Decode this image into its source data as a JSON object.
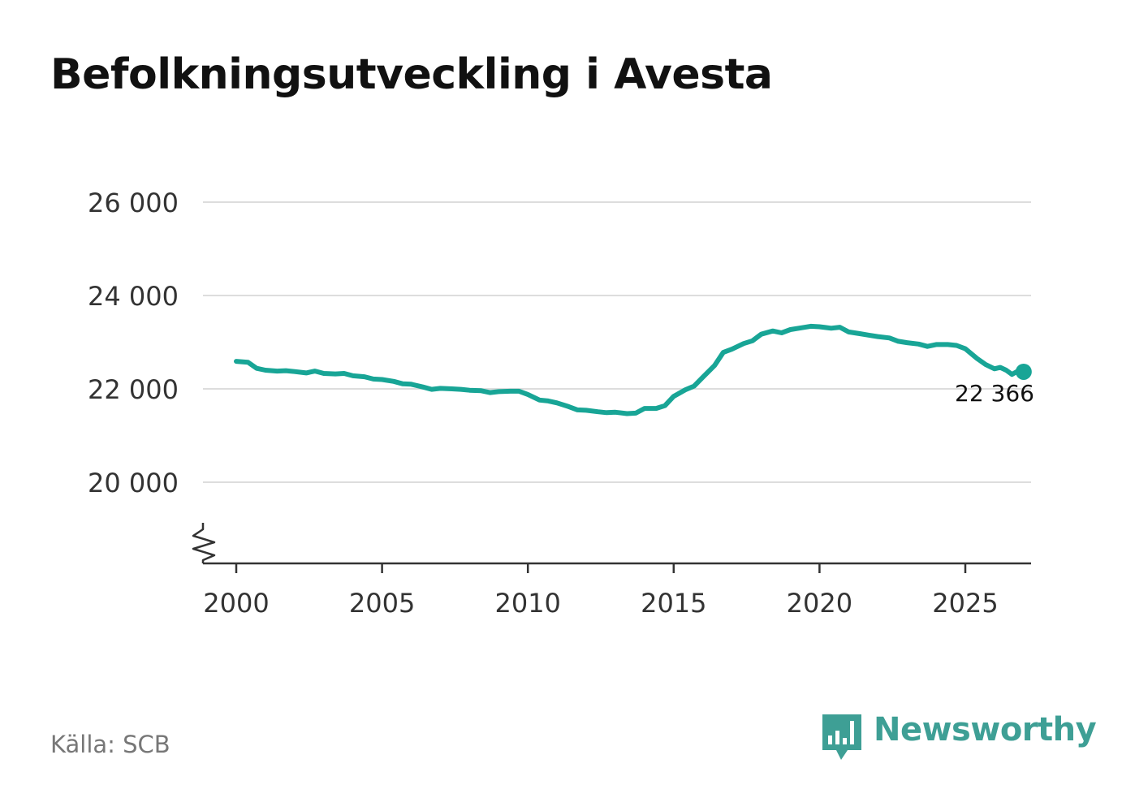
{
  "title": "Befolkningsutveckling i Avesta",
  "source": "Källa: SCB",
  "brand": {
    "name": "Newsworthy",
    "icon": "bar-chart-speech-bubble-icon",
    "color": "#3e9f95"
  },
  "colors": {
    "line": "#18a596",
    "grid": "#dddddd",
    "axis": "#333333"
  },
  "chart_data": {
    "type": "line",
    "title": "Befolkningsutveckling i Avesta",
    "xlabel": "",
    "ylabel": "",
    "xlim": [
      1999.2,
      2027.2
    ],
    "ylim": [
      18200,
      26000
    ],
    "axis_break": true,
    "grid": true,
    "y_ticks": [
      {
        "value": 20000,
        "label": "20 000"
      },
      {
        "value": 22000,
        "label": "22 000"
      },
      {
        "value": 24000,
        "label": "24 000"
      },
      {
        "value": 26000,
        "label": "26 000"
      }
    ],
    "x_ticks": [
      {
        "value": 2000,
        "label": "2000"
      },
      {
        "value": 2005,
        "label": "2005"
      },
      {
        "value": 2010,
        "label": "2010"
      },
      {
        "value": 2015,
        "label": "2015"
      },
      {
        "value": 2020,
        "label": "2020"
      },
      {
        "value": 2025,
        "label": "2025"
      }
    ],
    "end_label": "22 366",
    "series": [
      {
        "values": [
          [
            2000.0,
            22590
          ],
          [
            2000.4,
            22570
          ],
          [
            2000.7,
            22440
          ],
          [
            2001.0,
            22400
          ],
          [
            2001.4,
            22380
          ],
          [
            2001.7,
            22390
          ],
          [
            2002.0,
            22370
          ],
          [
            2002.4,
            22340
          ],
          [
            2002.7,
            22380
          ],
          [
            2003.0,
            22330
          ],
          [
            2003.4,
            22320
          ],
          [
            2003.7,
            22330
          ],
          [
            2004.0,
            22280
          ],
          [
            2004.4,
            22260
          ],
          [
            2004.7,
            22210
          ],
          [
            2005.0,
            22200
          ],
          [
            2005.4,
            22160
          ],
          [
            2005.7,
            22110
          ],
          [
            2006.0,
            22100
          ],
          [
            2006.4,
            22040
          ],
          [
            2006.7,
            21990
          ],
          [
            2007.0,
            22010
          ],
          [
            2007.4,
            22000
          ],
          [
            2007.7,
            21990
          ],
          [
            2008.0,
            21970
          ],
          [
            2008.4,
            21960
          ],
          [
            2008.7,
            21920
          ],
          [
            2009.0,
            21940
          ],
          [
            2009.4,
            21950
          ],
          [
            2009.7,
            21950
          ],
          [
            2010.0,
            21880
          ],
          [
            2010.4,
            21760
          ],
          [
            2010.7,
            21740
          ],
          [
            2011.0,
            21700
          ],
          [
            2011.4,
            21620
          ],
          [
            2011.7,
            21550
          ],
          [
            2012.0,
            21540
          ],
          [
            2012.4,
            21510
          ],
          [
            2012.7,
            21490
          ],
          [
            2013.0,
            21500
          ],
          [
            2013.4,
            21470
          ],
          [
            2013.7,
            21480
          ],
          [
            2014.0,
            21580
          ],
          [
            2014.4,
            21580
          ],
          [
            2014.7,
            21640
          ],
          [
            2015.0,
            21840
          ],
          [
            2015.4,
            21980
          ],
          [
            2015.7,
            22060
          ],
          [
            2016.0,
            22250
          ],
          [
            2016.4,
            22500
          ],
          [
            2016.7,
            22780
          ],
          [
            2017.0,
            22850
          ],
          [
            2017.4,
            22970
          ],
          [
            2017.7,
            23030
          ],
          [
            2018.0,
            23170
          ],
          [
            2018.4,
            23240
          ],
          [
            2018.7,
            23200
          ],
          [
            2019.0,
            23270
          ],
          [
            2019.4,
            23310
          ],
          [
            2019.7,
            23340
          ],
          [
            2020.0,
            23330
          ],
          [
            2020.4,
            23300
          ],
          [
            2020.7,
            23320
          ],
          [
            2021.0,
            23220
          ],
          [
            2021.4,
            23180
          ],
          [
            2021.7,
            23150
          ],
          [
            2022.0,
            23120
          ],
          [
            2022.4,
            23090
          ],
          [
            2022.7,
            23020
          ],
          [
            2023.0,
            22990
          ],
          [
            2023.4,
            22960
          ],
          [
            2023.7,
            22910
          ],
          [
            2024.0,
            22950
          ],
          [
            2024.4,
            22950
          ],
          [
            2024.7,
            22930
          ],
          [
            2025.0,
            22860
          ],
          [
            2025.4,
            22650
          ],
          [
            2025.7,
            22520
          ],
          [
            2026.0,
            22430
          ],
          [
            2026.2,
            22460
          ],
          [
            2026.4,
            22400
          ],
          [
            2026.6,
            22310
          ],
          [
            2026.8,
            22380
          ],
          [
            2027.0,
            22366
          ]
        ]
      }
    ]
  }
}
